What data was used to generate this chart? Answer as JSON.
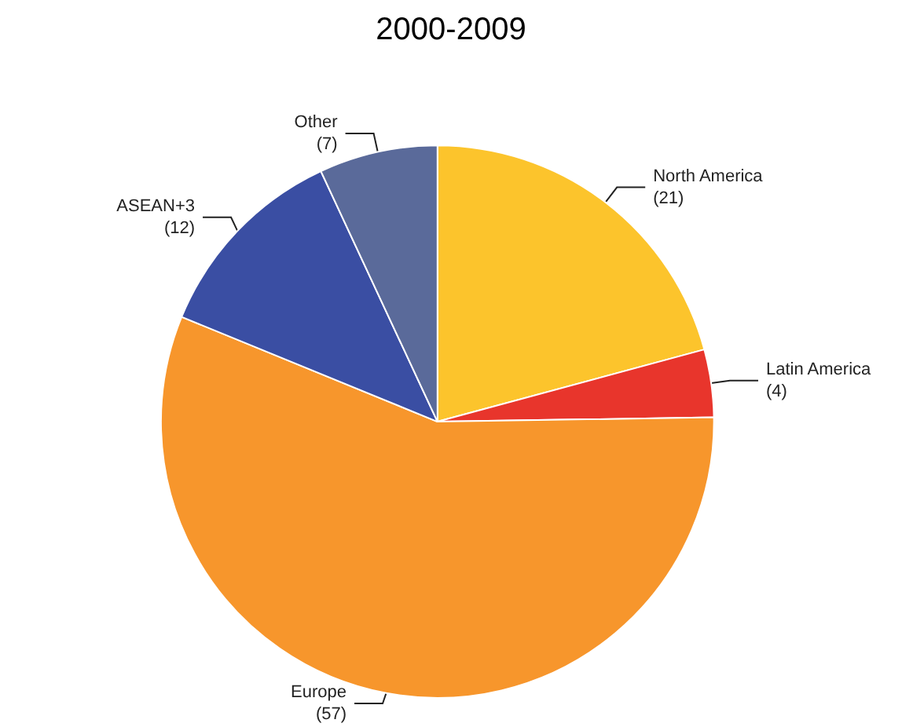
{
  "chart_data": {
    "type": "pie",
    "title": "2000-2009",
    "categories": [
      "North America",
      "Latin America",
      "Europe",
      "ASEAN+3",
      "Other"
    ],
    "values": [
      21,
      4,
      57,
      12,
      7
    ],
    "colors": [
      "#fcc42c",
      "#e8352c",
      "#f7962c",
      "#3a4ea3",
      "#5a6a9a"
    ],
    "value_labels": [
      "(21)",
      "(4)",
      "(57)",
      "(12)",
      "(7)"
    ],
    "legend": false
  }
}
